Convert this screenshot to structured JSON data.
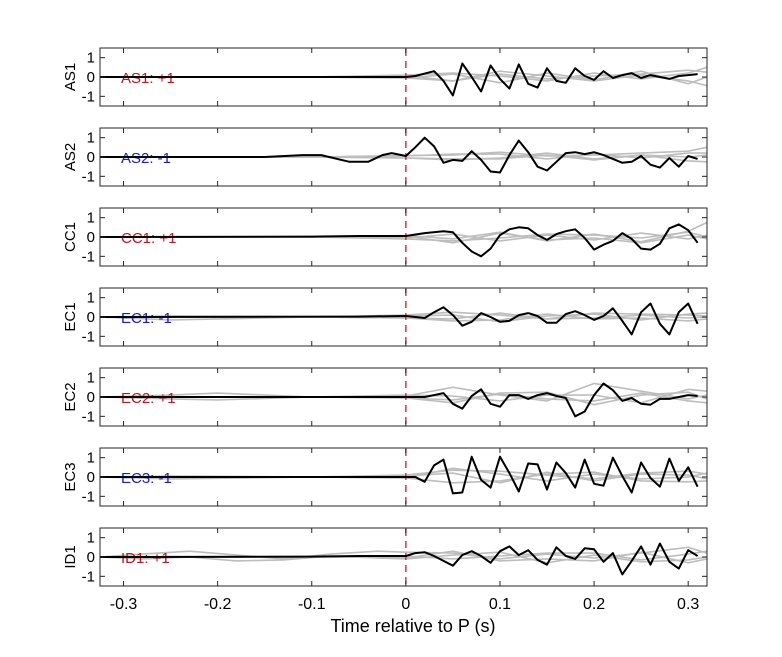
{
  "chart_data": {
    "type": "line",
    "xlabel": "Time relative to P (s)",
    "xlim": [
      -0.325,
      0.32
    ],
    "xticks": [
      -0.3,
      -0.2,
      -0.1,
      0,
      0.1,
      0.2,
      0.3
    ],
    "xtick_labels": [
      "-0.3",
      "-0.2",
      "-0.1",
      "0",
      "0.1",
      "0.2",
      "0.3"
    ],
    "ylim": [
      -1.5,
      1.5
    ],
    "yticks": [
      1,
      0,
      -1
    ],
    "ytick_labels": [
      "1",
      "0",
      "-1"
    ],
    "marker_x": 0,
    "marker_color": "#e8202a",
    "main_color": "#000000",
    "background_color": "#bdbdbd",
    "label_colors": {
      "+1": "#c0141e",
      "-1": "#1a1acc"
    },
    "panels": [
      {
        "ylabel": "AS1",
        "annotation": "AS1: +1",
        "polarity": "+1",
        "series_x": [
          -0.325,
          -0.05,
          0,
          0.01,
          0.03,
          0.04,
          0.05,
          0.06,
          0.07,
          0.08,
          0.09,
          0.1,
          0.11,
          0.12,
          0.13,
          0.14,
          0.15,
          0.16,
          0.17,
          0.18,
          0.19,
          0.2,
          0.21,
          0.22,
          0.23,
          0.24,
          0.25,
          0.26,
          0.27,
          0.28,
          0.29,
          0.3,
          0.31
        ],
        "series_y": [
          0,
          0,
          0,
          0.05,
          0.3,
          -0.2,
          -0.95,
          0.7,
          0,
          -0.75,
          0.6,
          -0.1,
          -0.6,
          0.65,
          -0.35,
          -0.55,
          0.45,
          -0.2,
          -0.3,
          0.45,
          0.05,
          -0.15,
          0.3,
          -0.05,
          0.1,
          0.2,
          -0.05,
          0.1,
          0,
          -0.1,
          0.05,
          0.1,
          0.15
        ],
        "bg_x": [
          -0.325,
          -0.1,
          0,
          0.05,
          0.1,
          0.15,
          0.2,
          0.25,
          0.3,
          0.32
        ],
        "bg_y": [
          [
            0,
            0,
            0.08,
            -0.2,
            0.15,
            -0.1,
            0.05,
            0.15,
            0.35,
            0.25
          ],
          [
            0,
            0,
            -0.05,
            0.15,
            -0.3,
            0.2,
            -0.15,
            0.3,
            -0.35,
            0
          ],
          [
            0,
            0,
            0.1,
            0.2,
            0.05,
            -0.2,
            0.2,
            -0.1,
            0.2,
            0.5
          ],
          [
            0,
            0,
            -0.05,
            -0.2,
            0.3,
            0.05,
            -0.2,
            0.1,
            -0.2,
            -0.45
          ]
        ]
      },
      {
        "ylabel": "AS2",
        "annotation": "AS2: -1",
        "polarity": "-1",
        "series_x": [
          -0.325,
          -0.15,
          -0.11,
          -0.09,
          -0.06,
          -0.04,
          -0.025,
          -0.015,
          0,
          0.01,
          0.02,
          0.03,
          0.04,
          0.05,
          0.06,
          0.07,
          0.08,
          0.09,
          0.1,
          0.11,
          0.12,
          0.13,
          0.14,
          0.15,
          0.16,
          0.17,
          0.18,
          0.19,
          0.2,
          0.21,
          0.22,
          0.23,
          0.24,
          0.25,
          0.26,
          0.27,
          0.28,
          0.29,
          0.3,
          0.31
        ],
        "series_y": [
          0,
          0,
          0.1,
          0.1,
          -0.25,
          -0.25,
          0.1,
          0.2,
          0.05,
          0.5,
          1,
          0.55,
          -0.3,
          -0.15,
          -0.2,
          0.3,
          -0.15,
          -0.75,
          -0.8,
          0.1,
          0.85,
          0.25,
          -0.5,
          -0.7,
          -0.25,
          0.2,
          0.25,
          0.15,
          0.25,
          0.1,
          -0.1,
          -0.3,
          -0.25,
          0.05,
          -0.4,
          -0.55,
          -0.05,
          -0.5,
          0.05,
          -0.1
        ],
        "bg_x": [
          -0.325,
          -0.1,
          0,
          0.05,
          0.1,
          0.15,
          0.2,
          0.25,
          0.3,
          0.32
        ],
        "bg_y": [
          [
            0,
            0,
            0.08,
            0.1,
            0.25,
            0.05,
            0.1,
            0.2,
            0.3,
            0.5
          ],
          [
            0,
            0,
            -0.05,
            -0.15,
            -0.05,
            0.2,
            -0.1,
            0.1,
            -0.2,
            -0.25
          ],
          [
            0,
            0,
            0.05,
            0.15,
            0.15,
            -0.1,
            0.15,
            -0.05,
            0.2,
            0.2
          ],
          [
            0,
            0,
            -0.05,
            -0.1,
            -0.1,
            0.1,
            -0.15,
            0.1,
            0,
            0.1
          ]
        ]
      },
      {
        "ylabel": "CC1",
        "annotation": "CC1: +1",
        "polarity": "+1",
        "series_x": [
          -0.325,
          -0.1,
          -0.05,
          0,
          0.02,
          0.04,
          0.05,
          0.06,
          0.07,
          0.08,
          0.09,
          0.1,
          0.11,
          0.12,
          0.13,
          0.14,
          0.15,
          0.16,
          0.17,
          0.18,
          0.19,
          0.2,
          0.21,
          0.22,
          0.23,
          0.24,
          0.25,
          0.26,
          0.27,
          0.28,
          0.29,
          0.3,
          0.31
        ],
        "series_y": [
          0,
          0.02,
          0.05,
          0.05,
          0.2,
          0.3,
          0.25,
          -0.3,
          -0.75,
          -1,
          -0.6,
          0.1,
          0.4,
          0.5,
          0.45,
          0.1,
          -0.15,
          0.15,
          0.3,
          0.4,
          -0.05,
          -0.65,
          -0.4,
          -0.2,
          0.2,
          -0.1,
          -0.6,
          -0.65,
          -0.35,
          0.45,
          0.65,
          0.35,
          -0.3
        ],
        "bg_x": [
          -0.325,
          -0.1,
          0,
          0.05,
          0.1,
          0.15,
          0.2,
          0.25,
          0.3,
          0.32
        ],
        "bg_y": [
          [
            0,
            0,
            0.08,
            -0.1,
            0.25,
            -0.2,
            0.15,
            -0.25,
            0.3,
            0.75
          ],
          [
            0,
            0,
            -0.05,
            0.15,
            -0.2,
            0.1,
            -0.15,
            0.2,
            -0.1,
            0.1
          ],
          [
            0,
            0,
            0.05,
            -0.3,
            0.2,
            -0.15,
            -0.05,
            -0.3,
            0.1,
            -0.1
          ],
          [
            0,
            0,
            -0.1,
            -0.2,
            -0.05,
            0.15,
            0.1,
            -0.05,
            0.25,
            0
          ]
        ]
      },
      {
        "ylabel": "EC1",
        "annotation": "EC1: -1",
        "polarity": "-1",
        "series_x": [
          -0.325,
          -0.05,
          0,
          0.01,
          0.02,
          0.03,
          0.04,
          0.05,
          0.06,
          0.07,
          0.08,
          0.09,
          0.1,
          0.11,
          0.12,
          0.13,
          0.14,
          0.15,
          0.16,
          0.17,
          0.18,
          0.19,
          0.2,
          0.21,
          0.22,
          0.23,
          0.24,
          0.25,
          0.26,
          0.27,
          0.28,
          0.29,
          0.3,
          0.31
        ],
        "series_y": [
          0,
          0.02,
          0.05,
          0,
          -0.05,
          0.25,
          0.5,
          0.1,
          -0.45,
          -0.25,
          0.2,
          0,
          -0.25,
          -0.2,
          0.1,
          0.2,
          0.05,
          -0.3,
          -0.3,
          0.15,
          0.3,
          0.1,
          -0.15,
          0.05,
          0.45,
          -0.2,
          -0.9,
          0.25,
          0.7,
          -0.35,
          -0.9,
          0.25,
          0.7,
          -0.35
        ],
        "bg_x": [
          -0.325,
          -0.25,
          -0.1,
          0,
          0.05,
          0.1,
          0.15,
          0.2,
          0.25,
          0.3,
          0.32
        ],
        "bg_y": [
          [
            0,
            -0.15,
            0,
            0.1,
            0.25,
            0.1,
            -0.1,
            0.2,
            0.15,
            0.1,
            0.05
          ],
          [
            0,
            0.05,
            0,
            -0.05,
            -0.2,
            -0.15,
            0.15,
            -0.1,
            -0.05,
            -0.2,
            -0.1
          ],
          [
            0,
            0,
            0,
            0.05,
            0.1,
            -0.25,
            0.05,
            0.15,
            -0.15,
            0.15,
            0.2
          ],
          [
            0,
            0,
            0,
            -0.05,
            -0.1,
            0.2,
            -0.1,
            -0.05,
            0.1,
            -0.05,
            0
          ]
        ]
      },
      {
        "ylabel": "EC2",
        "annotation": "EC2: +1",
        "polarity": "+1",
        "series_x": [
          -0.325,
          -0.05,
          0,
          0.02,
          0.03,
          0.04,
          0.05,
          0.06,
          0.07,
          0.08,
          0.09,
          0.1,
          0.11,
          0.12,
          0.13,
          0.14,
          0.15,
          0.16,
          0.17,
          0.18,
          0.19,
          0.2,
          0.21,
          0.22,
          0.23,
          0.24,
          0.25,
          0.26,
          0.27,
          0.28,
          0.29,
          0.3,
          0.31
        ],
        "series_y": [
          0,
          0,
          0,
          0,
          0.1,
          0.2,
          -0.35,
          -0.6,
          0.05,
          0.4,
          -0.35,
          -0.5,
          0.1,
          0.1,
          -0.1,
          0.1,
          0.2,
          0.05,
          -0.05,
          -1,
          -0.75,
          0.1,
          0.7,
          0.35,
          -0.2,
          -0.05,
          -0.35,
          -0.4,
          -0.1,
          -0.1,
          0,
          0.1,
          0.05
        ],
        "bg_x": [
          -0.325,
          -0.25,
          -0.2,
          -0.1,
          0,
          0.05,
          0.1,
          0.15,
          0.2,
          0.25,
          0.3,
          0.32
        ],
        "bg_y": [
          [
            0,
            0.1,
            0.2,
            0,
            0.05,
            0.5,
            0.1,
            -0.2,
            0.7,
            0.3,
            -0.1,
            0.1
          ],
          [
            0,
            -0.1,
            -0.15,
            0,
            -0.05,
            -0.3,
            0.2,
            0.25,
            -0.4,
            0.1,
            0.25,
            -0.1
          ],
          [
            0,
            0,
            0,
            0,
            0.1,
            0.05,
            -0.2,
            0.1,
            0.1,
            -0.3,
            0.4,
            0.3
          ],
          [
            0,
            0,
            0,
            0,
            -0.05,
            -0.15,
            0.15,
            -0.1,
            -0.2,
            0.2,
            -0.2,
            -0.3
          ]
        ]
      },
      {
        "ylabel": "EC3",
        "annotation": "EC3: -1",
        "polarity": "-1",
        "series_x": [
          -0.325,
          -0.05,
          0,
          0.01,
          0.02,
          0.03,
          0.04,
          0.05,
          0.06,
          0.07,
          0.08,
          0.09,
          0.1,
          0.11,
          0.12,
          0.13,
          0.14,
          0.15,
          0.16,
          0.17,
          0.18,
          0.19,
          0.2,
          0.21,
          0.22,
          0.23,
          0.24,
          0.25,
          0.26,
          0.27,
          0.28,
          0.29,
          0.3,
          0.31
        ],
        "series_y": [
          0,
          0,
          0,
          0,
          -0.25,
          0.6,
          0.9,
          -0.85,
          -0.8,
          1.05,
          -0.15,
          -0.55,
          1.05,
          0.2,
          -0.75,
          0.7,
          0.65,
          -0.65,
          0.75,
          0.2,
          -0.55,
          0.9,
          -0.35,
          -0.45,
          1,
          0.05,
          -0.8,
          0.75,
          -0.05,
          -0.5,
          0.95,
          -0.2,
          0.5,
          -0.5
        ],
        "bg_x": [
          -0.325,
          -0.25,
          -0.1,
          0,
          0.05,
          0.1,
          0.15,
          0.2,
          0.25,
          0.3,
          0.32
        ],
        "bg_y": [
          [
            0,
            0.05,
            0,
            0.1,
            0.35,
            0.3,
            0.1,
            -0.1,
            0.2,
            0.3,
            0.15
          ],
          [
            0,
            -0.1,
            0,
            -0.05,
            -0.3,
            -0.2,
            0.15,
            0.25,
            -0.2,
            -0.25,
            -0.2
          ],
          [
            0,
            0,
            0,
            0.05,
            0.2,
            -0.3,
            0.25,
            -0.2,
            0.15,
            0.1,
            -0.1
          ],
          [
            0,
            0,
            0,
            -0.05,
            0.45,
            0.15,
            -0.2,
            0.15,
            -0.1,
            0,
            0.2
          ]
        ]
      },
      {
        "ylabel": "ID1",
        "annotation": "ID1: +1",
        "polarity": "+1",
        "series_x": [
          -0.325,
          -0.1,
          -0.05,
          0,
          0.01,
          0.02,
          0.03,
          0.04,
          0.05,
          0.06,
          0.07,
          0.08,
          0.09,
          0.1,
          0.11,
          0.12,
          0.13,
          0.14,
          0.15,
          0.16,
          0.17,
          0.18,
          0.19,
          0.2,
          0.21,
          0.22,
          0.23,
          0.24,
          0.25,
          0.26,
          0.27,
          0.28,
          0.29,
          0.3,
          0.31
        ],
        "series_y": [
          0,
          0.02,
          0.05,
          0.05,
          0.2,
          0.25,
          0.05,
          -0.2,
          -0.45,
          0.1,
          0.3,
          0.05,
          -0.3,
          0.3,
          0.55,
          0.1,
          0.35,
          -0.15,
          -0.4,
          0.5,
          0.05,
          -0.1,
          0.45,
          0.4,
          -0.25,
          0.2,
          -0.9,
          -0.2,
          0.55,
          -0.4,
          0.7,
          -0.25,
          -0.6,
          0.35,
          0.05
        ],
        "bg_x": [
          -0.325,
          -0.28,
          -0.23,
          -0.18,
          -0.13,
          -0.08,
          -0.03,
          0,
          0.05,
          0.1,
          0.15,
          0.2,
          0.25,
          0.3,
          0.32
        ],
        "bg_y": [
          [
            0,
            0.15,
            0.3,
            0.1,
            -0.1,
            0.15,
            0.3,
            0.25,
            0.2,
            -0.1,
            0.15,
            -0.05,
            0.2,
            0.5,
            0.2
          ],
          [
            0,
            -0.1,
            0,
            -0.2,
            -0.15,
            0.05,
            -0.05,
            -0.1,
            0.1,
            0.25,
            -0.3,
            0.1,
            -0.25,
            -0.15,
            0
          ],
          [
            0,
            0,
            0,
            0,
            0,
            0,
            0,
            0.05,
            -0.1,
            0.05,
            0.2,
            0.2,
            -0.15,
            0.15,
            0.3
          ],
          [
            0,
            0,
            0,
            0,
            0,
            0,
            0,
            -0.05,
            0.3,
            -0.2,
            -0.1,
            -0.2,
            0.25,
            -0.3,
            -0.1
          ]
        ]
      }
    ]
  }
}
